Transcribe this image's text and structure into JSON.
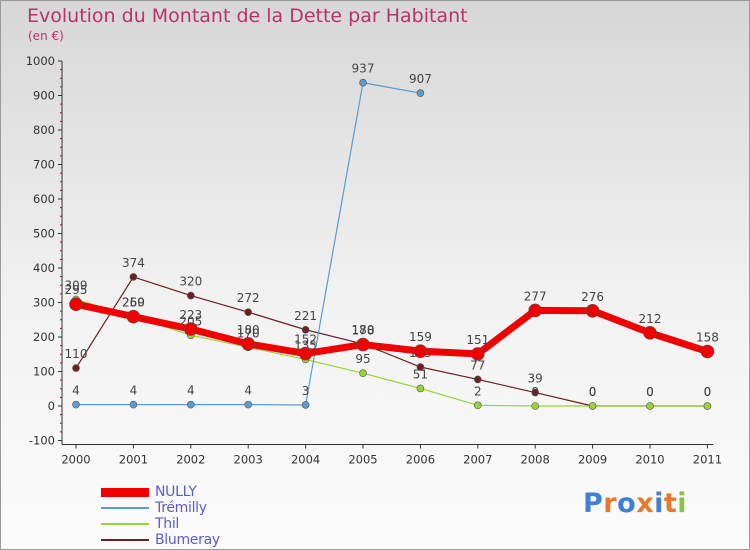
{
  "title": "Evolution du Montant de la Dette par Habitant",
  "subtitle": "(en €)",
  "brand": {
    "text": "Proxiti",
    "letters": [
      "P",
      "r",
      "o",
      "x",
      "i",
      "t",
      "i"
    ],
    "colors": [
      "#3f7fd4",
      "#e8782a",
      "#3f7fd4",
      "#e8782a",
      "#3f7fd4",
      "#e8782a",
      "#8bc34a"
    ]
  },
  "chart_data": {
    "type": "line",
    "categories": [
      "2000",
      "2001",
      "2002",
      "2003",
      "2004",
      "2005",
      "2006",
      "2007",
      "2008",
      "2009",
      "2010",
      "2011"
    ],
    "ylim": [
      -100,
      1000
    ],
    "yticks": [
      -100,
      0,
      100,
      200,
      300,
      400,
      500,
      600,
      700,
      800,
      900,
      1000
    ],
    "grid": false,
    "legend_position": "bottom-left",
    "series": [
      {
        "name": "Blumeray",
        "color": "#6e1f23",
        "width": 1.2,
        "marker": 3.5,
        "values": [
          110,
          374,
          320,
          272,
          221,
          180,
          113,
          77,
          39,
          0,
          0,
          0
        ],
        "labels": [
          "110",
          "374",
          "320",
          "272",
          "221",
          "180",
          "113",
          "77",
          "39",
          "0",
          "0",
          "0"
        ]
      },
      {
        "name": "Thil",
        "color": "#9ad23a",
        "width": 1.2,
        "marker": 3.5,
        "values": [
          309,
          260,
          205,
          170,
          135,
          95,
          51,
          2,
          0,
          0,
          0,
          0
        ],
        "labels": [
          "309",
          "260",
          "205",
          "170",
          "135",
          "95",
          "51",
          "2",
          "0",
          "0",
          "0",
          "0"
        ]
      },
      {
        "name": "Trémilly",
        "color": "#5c9bd0",
        "width": 1.2,
        "marker": 3.5,
        "values": [
          4,
          4,
          4,
          4,
          3,
          937,
          907,
          null,
          null,
          null,
          null,
          null
        ],
        "labels": [
          "4",
          "4",
          "4",
          "4",
          "3",
          "937",
          "907",
          "",
          "",
          "",
          "",
          ""
        ]
      },
      {
        "name": "NULLY",
        "color": "#f00000",
        "width": 7,
        "marker": 6.5,
        "values": [
          295,
          259,
          223,
          180,
          152,
          178,
          159,
          151,
          277,
          276,
          212,
          158
        ],
        "labels": [
          "295",
          "259",
          "223",
          "180",
          "152",
          "178",
          "159",
          "151",
          "277",
          "276",
          "212",
          "158"
        ]
      }
    ],
    "legend_order": [
      "NULLY",
      "Trémilly",
      "Thil",
      "Blumeray"
    ]
  }
}
